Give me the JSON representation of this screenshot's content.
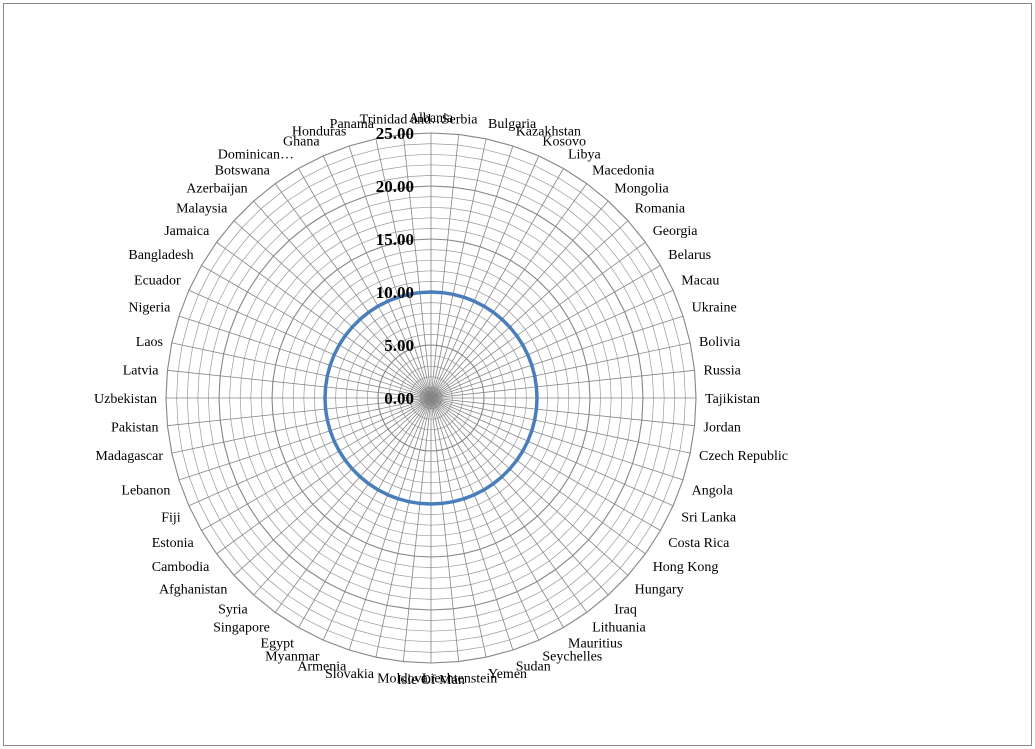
{
  "chart_data": {
    "type": "radar",
    "title": "",
    "categories": [
      "Albania",
      "Serbia",
      "Bulgaria",
      "Kazakhstan",
      "Kosovo",
      "Libya",
      "Macedonia",
      "Mongolia",
      "Romania",
      "Georgia",
      "Belarus",
      "Macau",
      "Ukraine",
      "Bolivia",
      "Russia",
      "Tajikistan",
      "Jordan",
      "Czech Republic",
      "Angola",
      "Sri Lanka",
      "Costa Rica",
      "Hong Kong",
      "Hungary",
      "Iraq",
      "Lithuania",
      "Mauritius",
      "Seychelles",
      "Sudan",
      "Yemen",
      "Liechtenstein",
      "Isle Of Man",
      "Moldova",
      "Slovakia",
      "Armenia",
      "Myanmar",
      "Egypt",
      "Singapore",
      "Syria",
      "Afghanistan",
      "Cambodia",
      "Estonia",
      "Fiji",
      "Lebanon",
      "Madagascar",
      "Pakistan",
      "Uzbekistan",
      "Latvia",
      "Laos",
      "Nigeria",
      "Ecuador",
      "Bangladesh",
      "Jamaica",
      "Malaysia",
      "Azerbaijan",
      "Botswana",
      "Dominican…",
      "Ghana",
      "Honduras",
      "Panama",
      "Trinidad and…"
    ],
    "values": [
      10,
      10,
      10,
      10,
      10,
      10,
      10,
      10,
      10,
      10,
      10,
      10,
      10,
      10,
      10,
      10,
      10,
      10,
      10,
      10,
      10,
      10,
      10,
      10,
      10,
      10,
      10,
      10,
      10,
      10,
      10,
      10,
      10,
      10,
      10,
      10,
      10,
      10,
      10,
      10,
      10,
      10,
      10,
      10,
      10,
      10,
      10,
      10,
      10,
      10,
      10,
      10,
      10,
      10,
      10,
      10,
      10,
      10,
      10,
      10
    ],
    "tick_labels": [
      "0.00",
      "5.00",
      "10.00",
      "15.00",
      "20.00",
      "25.00"
    ],
    "ylim": [
      0,
      25
    ],
    "major_step": 5,
    "minor_step": 1,
    "grid": true,
    "legend": "none",
    "colors": {
      "series": "#4a7ebb",
      "grid_major": "#868686",
      "grid_minor": "#9a9a9a"
    }
  }
}
